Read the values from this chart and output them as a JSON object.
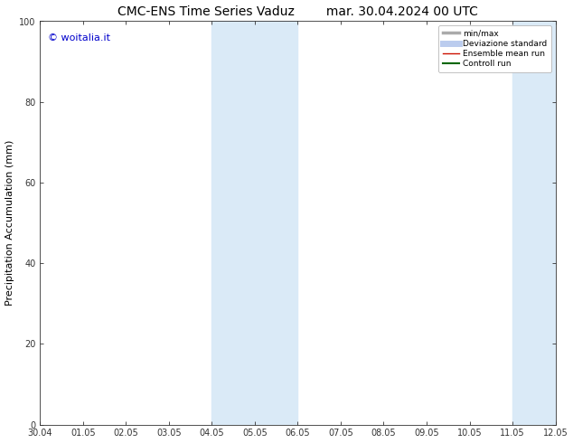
{
  "title_left": "CMC-ENS Time Series Vaduz",
  "title_right": "mar. 30.04.2024 00 UTC",
  "ylabel": "Precipitation Accumulation (mm)",
  "watermark": "© woitalia.it",
  "watermark_color": "#0000cc",
  "xtick_labels": [
    "30.04",
    "01.05",
    "02.05",
    "03.05",
    "04.05",
    "05.05",
    "06.05",
    "07.05",
    "08.05",
    "09.05",
    "10.05",
    "11.05",
    "12.05"
  ],
  "ylim": [
    0,
    100
  ],
  "ytick_labels": [
    0,
    20,
    40,
    60,
    80,
    100
  ],
  "background_color": "#ffffff",
  "plot_bg_color": "#ffffff",
  "shaded_regions": [
    {
      "xstart": 4,
      "xend": 6,
      "color": "#daeaf7"
    },
    {
      "xstart": 11,
      "xend": 13,
      "color": "#daeaf7"
    }
  ],
  "legend_entries": [
    {
      "label": "min/max",
      "color": "#aaaaaa",
      "lw": 2.5
    },
    {
      "label": "Deviazione standard",
      "color": "#bbccee",
      "lw": 5
    },
    {
      "label": "Ensemble mean run",
      "color": "#cc1100",
      "lw": 1.0
    },
    {
      "label": "Controll run",
      "color": "#006600",
      "lw": 1.5
    }
  ],
  "title_fontsize": 10,
  "tick_fontsize": 7,
  "ylabel_fontsize": 8,
  "watermark_fontsize": 8,
  "legend_fontsize": 6.5
}
